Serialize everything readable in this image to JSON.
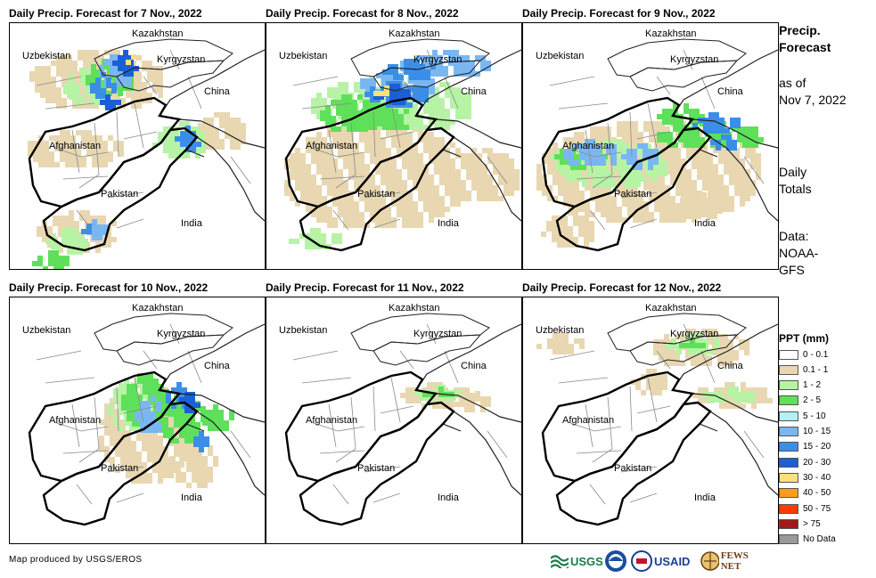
{
  "panels": [
    {
      "title": "Daily Precip. Forecast for 7 Nov., 2022",
      "labels": {
        "kazakhstan": "Kazakhstan",
        "uzbekistan": "Uzbekistan",
        "kyrgyzstan": "Kyrgyzstan",
        "china": "China",
        "afghanistan": "Afghanistan",
        "pakistan": "Pakistan",
        "india": "India"
      }
    },
    {
      "title": "Daily Precip. Forecast for 8 Nov., 2022",
      "labels": {
        "kazakhstan": "Kazakhstan",
        "uzbekistan": "Uzbekistan",
        "kyrgyzstan": "Kyrgyzstan",
        "china": "China",
        "afghanistan": "Afghanistan",
        "pakistan": "Pakistan",
        "india": "India"
      }
    },
    {
      "title": "Daily Precip. Forecast for 9 Nov., 2022",
      "labels": {
        "kazakhstan": "Kazakhstan",
        "uzbekistan": "Uzbekistan",
        "kyrgyzstan": "Kyrgyzstan",
        "china": "China",
        "afghanistan": "Afghanistan",
        "pakistan": "Pakistan",
        "india": "India"
      }
    },
    {
      "title": "Daily Precip. Forecast for 10 Nov., 2022",
      "labels": {
        "kazakhstan": "Kazakhstan",
        "uzbekistan": "Uzbekistan",
        "kyrgyzstan": "Kyrgyzstan",
        "china": "China",
        "afghanistan": "Afghanistan",
        "pakistan": "Pakistan",
        "india": "India"
      }
    },
    {
      "title": "Daily Precip. Forecast for 11 Nov., 2022",
      "labels": {
        "kazakhstan": "Kazakhstan",
        "uzbekistan": "Uzbekistan",
        "kyrgyzstan": "Kyrgyzstan",
        "china": "China",
        "afghanistan": "Afghanistan",
        "pakistan": "Pakistan",
        "india": "India"
      }
    },
    {
      "title": "Daily Precip. Forecast for 12 Nov., 2022",
      "labels": {
        "kazakhstan": "Kazakhstan",
        "uzbekistan": "Uzbekistan",
        "kyrgyzstan": "Kyrgyzstan",
        "china": "China",
        "afghanistan": "Afghanistan",
        "pakistan": "Pakistan",
        "india": "India"
      }
    }
  ],
  "side": {
    "title_line1": "Precip.",
    "title_line2": "Forecast",
    "asof_line1": "as of",
    "asof_line2": "Nov 7, 2022",
    "totals_line1": "Daily",
    "totals_line2": "Totals",
    "data_line1": "Data:",
    "data_line2": "NOAA-",
    "data_line3": "GFS"
  },
  "legend": {
    "title": "PPT (mm)",
    "items": [
      {
        "label": "0 - 0.1",
        "color": "#ffffff"
      },
      {
        "label": "0.1 - 1",
        "color": "#e8d7b1"
      },
      {
        "label": "1 - 2",
        "color": "#b6f3a4"
      },
      {
        "label": "2 - 5",
        "color": "#5ee05a"
      },
      {
        "label": "5 - 10",
        "color": "#b3f0f7"
      },
      {
        "label": "10 - 15",
        "color": "#7ab7f2"
      },
      {
        "label": "15 - 20",
        "color": "#3b8ee8"
      },
      {
        "label": "20 - 30",
        "color": "#1b5fd6"
      },
      {
        "label": "30 - 40",
        "color": "#ffe07a"
      },
      {
        "label": "40 - 50",
        "color": "#ff9d1a"
      },
      {
        "label": "50 - 75",
        "color": "#ff3c00"
      },
      {
        "label": "> 75",
        "color": "#a01a1a"
      },
      {
        "label": "No Data",
        "color": "#999999"
      }
    ]
  },
  "credit": "Map produced by USGS/EROS",
  "logos": {
    "usgs": "USGS",
    "usaid": "USAID",
    "fewsnet": "FEWS NET"
  }
}
